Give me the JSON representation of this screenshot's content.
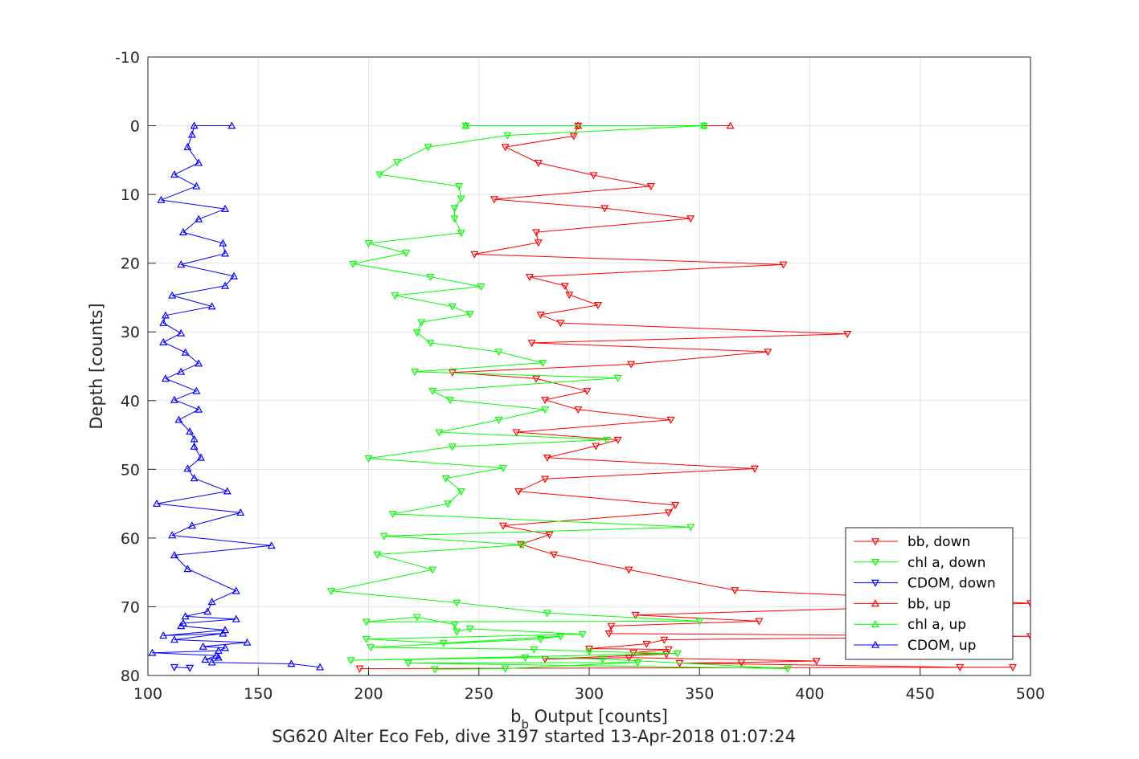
{
  "chart_data": {
    "type": "line",
    "xlabel_main": "b",
    "xlabel_sub": "b",
    "xlabel_rest": " Output [counts]",
    "ylabel": "Depth [counts]",
    "caption": "SG620 Alter Eco Feb, dive 3197 started 13-Apr-2018 01:07:24",
    "xlim": [
      100,
      500
    ],
    "ylim": [
      -10,
      80
    ],
    "y_reversed": true,
    "grid": true,
    "legend_position": "bottom-right",
    "xticks": [
      "100",
      "150",
      "200",
      "250",
      "300",
      "350",
      "400",
      "450",
      "500"
    ],
    "yticks": [
      "-10",
      "0",
      "10",
      "20",
      "30",
      "40",
      "50",
      "60",
      "70",
      "80"
    ],
    "series": [
      {
        "name": "bb, down",
        "color": "#ff0000",
        "marker": "triangle-down",
        "x": [
          295,
          293,
          262,
          277,
          302,
          328,
          257,
          307,
          346,
          276,
          277,
          248,
          388,
          273,
          289,
          291,
          304,
          278,
          287,
          417,
          274,
          381,
          319,
          238,
          276,
          299,
          280,
          295,
          337,
          267,
          313,
          303,
          281,
          375,
          280,
          268,
          339,
          336,
          261,
          282,
          269,
          284,
          318,
          366,
          500,
          321,
          377,
          310,
          309,
          500,
          334,
          326,
          300,
          336,
          320,
          335,
          280,
          318,
          403,
          369,
          341,
          468,
          492,
          196
        ],
        "y": [
          0,
          1.5,
          3.1,
          5.4,
          7.2,
          8.8,
          10.7,
          12,
          13.5,
          15.5,
          17,
          18.7,
          20.2,
          22,
          23.3,
          24.6,
          26.1,
          27.5,
          28.7,
          30.3,
          31.6,
          32.9,
          34.7,
          35.9,
          36.8,
          38.6,
          39.9,
          41.3,
          42.8,
          44.6,
          45.7,
          46.6,
          48.3,
          49.9,
          51.4,
          53.2,
          55.2,
          56.3,
          58.2,
          59.5,
          60.9,
          62.4,
          64.6,
          67.6,
          69.5,
          71.2,
          72.1,
          72.8,
          73.9,
          74.3,
          74.8,
          75.4,
          76.1,
          76.2,
          76.7,
          76.9,
          77.6,
          77.4,
          77.9,
          78.1,
          78.2,
          78.8,
          78.8,
          79
        ]
      },
      {
        "name": "chl a, down",
        "color": "#00ff00",
        "marker": "triangle-down",
        "x": [
          244,
          352,
          263,
          227,
          213,
          205,
          241,
          242,
          239,
          239,
          242,
          200,
          217,
          193,
          228,
          251,
          212,
          238,
          246,
          224,
          222,
          228,
          259,
          279,
          221,
          313,
          229,
          237,
          280,
          259,
          232,
          308,
          238,
          200,
          261,
          235,
          242,
          236,
          211,
          346,
          207,
          270,
          204,
          229,
          183,
          240,
          281,
          350,
          199,
          222,
          239,
          240,
          246,
          297,
          199,
          234,
          287,
          278,
          201,
          275,
          300,
          340,
          192,
          271,
          306,
          390,
          218,
          322,
          262,
          230
        ],
        "y": [
          0,
          0,
          1.4,
          3.1,
          5.3,
          7.1,
          8.8,
          10.6,
          12,
          13.5,
          15.6,
          17.1,
          18.5,
          20.1,
          22,
          23.4,
          24.7,
          26.3,
          27.4,
          28.6,
          30.1,
          31.6,
          32.9,
          34.5,
          35.8,
          36.7,
          38.6,
          39.9,
          41.3,
          42.8,
          44.6,
          45.7,
          46.7,
          48.4,
          49.8,
          51.3,
          53.2,
          55,
          56.5,
          58.4,
          59.7,
          61,
          62.4,
          64.6,
          67.7,
          69.4,
          70.9,
          72.1,
          72.2,
          71.5,
          72.6,
          73.6,
          73.2,
          74,
          74.7,
          75.3,
          74.3,
          74.7,
          75.9,
          76.2,
          76.5,
          76.8,
          77.8,
          77.4,
          77.6,
          79,
          78.2,
          78.1,
          79,
          79.1
        ]
      },
      {
        "name": "CDOM, down",
        "color": "#0000ff",
        "marker": "triangle-down",
        "x": [
          112,
          119
        ],
        "y": [
          78.8,
          78.9
        ]
      },
      {
        "name": "bb, up",
        "color": "#ff0000",
        "marker": "triangle-up",
        "x": [
          364,
          295
        ],
        "y": [
          0,
          0
        ]
      },
      {
        "name": "chl a, up",
        "color": "#00ff00",
        "marker": "triangle-up",
        "x": [
          244,
          352
        ],
        "y": [
          0,
          0
        ]
      },
      {
        "name": "CDOM, up",
        "color": "#0000ff",
        "marker": "triangle-up",
        "x": [
          138,
          121,
          120,
          118,
          123,
          112,
          122,
          106,
          135,
          123,
          116,
          134,
          135,
          115,
          139,
          135,
          111,
          129,
          108,
          107,
          115,
          107,
          117,
          123,
          115,
          108,
          122,
          112,
          123,
          114,
          119,
          121,
          121,
          124,
          118,
          121,
          136,
          104,
          142,
          120,
          111,
          156,
          112,
          118,
          140,
          129,
          127,
          117,
          140,
          116,
          115,
          135,
          107,
          134,
          112,
          145,
          125,
          135,
          132,
          102,
          131,
          126,
          132,
          129,
          165,
          178
        ],
        "y": [
          0,
          0,
          1.3,
          3.1,
          5.4,
          7.1,
          8.8,
          10.8,
          12.1,
          13.6,
          15.5,
          17.1,
          18.6,
          20.2,
          21.9,
          23.3,
          24.7,
          26.3,
          27.6,
          28.7,
          30.2,
          31.5,
          33,
          34.6,
          35.8,
          36.8,
          38.6,
          39.9,
          41.3,
          42.8,
          44.5,
          45.6,
          46.7,
          48.3,
          49.9,
          51.3,
          53.2,
          55,
          56.3,
          58.2,
          59.6,
          61.1,
          62.5,
          64.5,
          67.7,
          69.3,
          70.7,
          71.4,
          71.8,
          72.4,
          72.8,
          73.4,
          74.2,
          73.9,
          74.8,
          75.2,
          75.8,
          76,
          76.4,
          76.7,
          77.1,
          77.7,
          77.4,
          78.1,
          78.3,
          78.8
        ]
      }
    ]
  }
}
